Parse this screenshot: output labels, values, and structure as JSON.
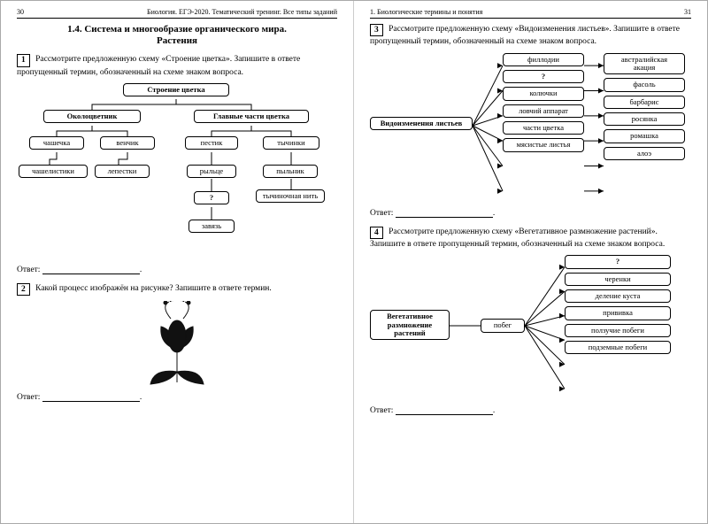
{
  "left": {
    "page_num": "30",
    "running_head": "Биология. ЕГЭ-2020. Тематический тренинг. Все типы заданий",
    "section_title_1": "1.4. Система и многообразие органического мира.",
    "section_title_2": "Растения",
    "task1_num": "1",
    "task1_text": "Рассмотрите предложенную схему «Строение цветка». Запишите в ответе пропущенный термин, обозначенный на схеме знаком вопроса.",
    "task2_num": "2",
    "task2_text": "Какой процесс изображён на рисунке? Запишите в ответе термин.",
    "answer_label": "Ответ:"
  },
  "right": {
    "page_num": "31",
    "running_head": "1. Биологические термины и понятия",
    "task3_num": "3",
    "task3_text": "Рассмотрите предложенную схему «Видоизменения листьев». Запишите в ответе пропущенный термин, обозначенный на схеме знаком вопроса.",
    "task4_num": "4",
    "task4_text": "Рассмотрите предложенную схему «Вегетативное размножение растений». Запишите в ответе пропущенный термин, обозначенный на схеме знаком вопроса.",
    "answer_label": "Ответ:"
  },
  "diagram1": {
    "root": "Строение цветка",
    "n_okolo": "Околоцветник",
    "n_main": "Главные части цветка",
    "chashechka": "чашечка",
    "venchik": "венчик",
    "pestik": "пестик",
    "tychinki": "тычинки",
    "chashelistiki": "чашелистики",
    "lepestki": "лепестки",
    "rylce": "рыльце",
    "pylnik": "пыльник",
    "q": "?",
    "tnit": "тычиночная нить",
    "zavyaz": "завязь"
  },
  "diagram3": {
    "root": "Видоизменения листьев",
    "mids": [
      "филлодии",
      "?",
      "колючки",
      "ловчий аппарат",
      "части цветка",
      "мясистые листья"
    ],
    "rights": [
      "австралийская акация",
      "фасоль",
      "барбарис",
      "росянка",
      "ромашка",
      "алоэ"
    ]
  },
  "diagram4": {
    "root_l1": "Вегетативное",
    "root_l2": "размножение",
    "root_l3": "растений",
    "mid": "побег",
    "rights": [
      "?",
      "черенки",
      "деление куста",
      "прививка",
      "ползучие побеги",
      "подземные побеги"
    ]
  }
}
